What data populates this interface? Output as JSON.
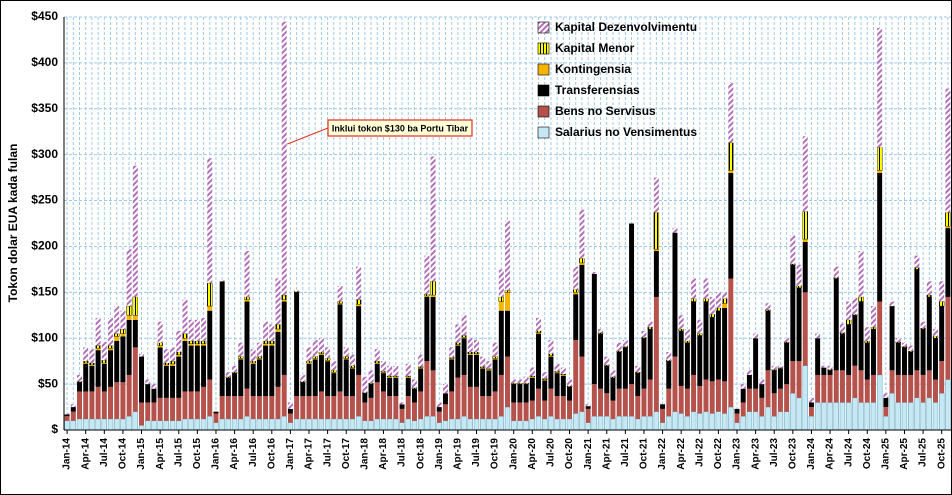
{
  "chart_data": {
    "type": "bar",
    "stacked": true,
    "ylabel": "Tokon dolar EUA kada fulan",
    "annotation": "Inklui tokon $130 ba Portu Tibar",
    "annotation_category": 35,
    "categories": [
      "Jan-14",
      null,
      null,
      "Apr-14",
      null,
      null,
      "Jul-14",
      null,
      null,
      "Oct-14",
      null,
      null,
      "Jan-15",
      null,
      null,
      "Apr-15",
      null,
      null,
      "Jul-15",
      null,
      null,
      "Oct-15",
      null,
      null,
      "Jan-16",
      null,
      null,
      "Apr-16",
      null,
      null,
      "Jul-16",
      null,
      null,
      "Oct-16",
      null,
      null,
      "Jan-17",
      null,
      null,
      "Apr-17",
      null,
      null,
      "Jul-17",
      null,
      null,
      "Oct-17",
      null,
      null,
      "Jan-18",
      null,
      null,
      "Apr-18",
      null,
      null,
      "Jul-18",
      null,
      null,
      "Oct-18",
      null,
      null,
      "Jan-19",
      null,
      null,
      "Apr-19",
      null,
      null,
      "Jul-19",
      null,
      null,
      "Oct-19",
      null,
      null,
      "Jan-20",
      null,
      null,
      "Apr-20",
      null,
      null,
      "Jul-20",
      null,
      null,
      "Oct-20",
      null,
      null,
      "Jan-21",
      null,
      null,
      "Apr-21",
      null,
      null,
      "Jul-21",
      null,
      null,
      "Oct-21",
      null,
      null,
      "Jan-22",
      null,
      null,
      "Apr-22",
      null,
      null,
      "Jul-22",
      null,
      null,
      "Oct-22",
      null,
      null,
      "Jan-23",
      null,
      null,
      "Apr-23",
      null,
      null,
      "Jul-23",
      null,
      null,
      "Oct-23",
      null,
      null,
      "Jan-24",
      null,
      null,
      "Apr-24",
      null,
      null,
      "Jul-24",
      null,
      null,
      "Oct-24",
      null,
      null,
      "Jan-25",
      null,
      null,
      "Apr-25",
      null,
      null,
      "Jul-25",
      null,
      null,
      "Oct-25",
      null
    ],
    "series": [
      {
        "name": "Salarius no Vensimentus",
        "color": "#c5e8f4",
        "stroke": "#4a90a8",
        "values": [
          10,
          10,
          12,
          12,
          12,
          12,
          12,
          12,
          12,
          12,
          15,
          20,
          5,
          10,
          10,
          10,
          10,
          10,
          10,
          12,
          12,
          12,
          12,
          15,
          8,
          12,
          12,
          12,
          12,
          15,
          12,
          12,
          12,
          12,
          12,
          15,
          8,
          12,
          12,
          12,
          12,
          12,
          12,
          12,
          12,
          12,
          12,
          15,
          10,
          10,
          12,
          12,
          12,
          12,
          8,
          12,
          10,
          12,
          15,
          15,
          8,
          10,
          12,
          12,
          15,
          12,
          12,
          12,
          12,
          12,
          15,
          25,
          10,
          10,
          10,
          12,
          15,
          12,
          15,
          12,
          12,
          12,
          18,
          20,
          8,
          15,
          15,
          15,
          12,
          15,
          15,
          15,
          12,
          15,
          15,
          20,
          8,
          15,
          20,
          18,
          15,
          20,
          18,
          20,
          18,
          20,
          18,
          25,
          8,
          15,
          20,
          20,
          15,
          25,
          15,
          20,
          20,
          40,
          35,
          70,
          15,
          30,
          30,
          30,
          30,
          30,
          30,
          35,
          30,
          30,
          30,
          60,
          15,
          40,
          30,
          30,
          30,
          35,
          30,
          35,
          30,
          40,
          55
        ]
      },
      {
        "name": "Bens no Servisus",
        "color": "#b5524c",
        "values": [
          5,
          10,
          30,
          30,
          30,
          35,
          30,
          35,
          40,
          40,
          45,
          70,
          25,
          20,
          20,
          25,
          25,
          25,
          25,
          30,
          30,
          30,
          35,
          40,
          10,
          25,
          25,
          25,
          25,
          30,
          25,
          25,
          25,
          25,
          35,
          45,
          10,
          25,
          25,
          25,
          25,
          30,
          25,
          25,
          30,
          25,
          25,
          45,
          20,
          25,
          40,
          30,
          25,
          25,
          15,
          25,
          20,
          30,
          60,
          50,
          12,
          18,
          30,
          45,
          45,
          35,
          35,
          25,
          25,
          30,
          45,
          55,
          20,
          20,
          20,
          20,
          30,
          20,
          30,
          25,
          25,
          20,
          80,
          60,
          15,
          35,
          30,
          25,
          20,
          30,
          30,
          35,
          25,
          30,
          40,
          125,
          15,
          30,
          60,
          30,
          30,
          40,
          30,
          35,
          35,
          35,
          35,
          140,
          10,
          15,
          25,
          25,
          20,
          40,
          25,
          25,
          30,
          35,
          40,
          80,
          10,
          30,
          30,
          30,
          35,
          35,
          30,
          35,
          35,
          25,
          30,
          80,
          10,
          25,
          30,
          30,
          30,
          30,
          30,
          30,
          25,
          35,
          90
        ]
      },
      {
        "name": "Transferensias",
        "color": "#000000",
        "values": [
          2,
          5,
          10,
          30,
          28,
          40,
          30,
          40,
          45,
          50,
          60,
          30,
          50,
          20,
          15,
          55,
          35,
          35,
          45,
          55,
          50,
          50,
          45,
          75,
          2,
          125,
          20,
          25,
          40,
          95,
          35,
          40,
          55,
          55,
          60,
          80,
          5,
          113,
          15,
          35,
          40,
          40,
          38,
          25,
          95,
          40,
          30,
          75,
          10,
          15,
          20,
          20,
          20,
          20,
          5,
          20,
          15,
          25,
          70,
          80,
          5,
          12,
          35,
          35,
          40,
          35,
          35,
          30,
          28,
          35,
          70,
          50,
          20,
          20,
          20,
          25,
          60,
          22,
          35,
          25,
          22,
          15,
          50,
          100,
          3,
          120,
          60,
          30,
          25,
          40,
          45,
          175,
          25,
          55,
          55,
          50,
          5,
          30,
          135,
          60,
          50,
          80,
          55,
          85,
          70,
          75,
          80,
          115,
          5,
          15,
          15,
          55,
          15,
          65,
          25,
          22,
          45,
          105,
          80,
          55,
          5,
          40,
          8,
          5,
          100,
          40,
          55,
          55,
          75,
          40,
          50,
          140,
          10,
          70,
          35,
          30,
          25,
          110,
          50,
          80,
          45,
          60,
          75
        ]
      },
      {
        "name": "Kontingensia",
        "color": "#f5b400",
        "values": [
          0,
          0,
          0,
          1,
          1,
          2,
          1,
          2,
          5,
          3,
          5,
          5,
          0,
          0,
          0,
          2,
          1,
          2,
          2,
          3,
          2,
          2,
          2,
          5,
          0,
          0,
          0,
          0,
          1,
          2,
          1,
          1,
          2,
          2,
          3,
          2,
          0,
          0,
          0,
          1,
          1,
          1,
          1,
          1,
          1,
          1,
          1,
          2,
          0,
          0,
          1,
          1,
          1,
          1,
          0,
          1,
          0,
          1,
          1,
          2,
          0,
          0,
          1,
          1,
          1,
          1,
          1,
          1,
          1,
          1,
          10,
          20,
          0,
          0,
          0,
          1,
          1,
          1,
          1,
          1,
          1,
          0,
          2,
          2,
          0,
          0,
          0,
          0,
          0,
          0,
          0,
          0,
          0,
          0,
          0,
          2,
          0,
          0,
          0,
          0,
          0,
          0,
          0,
          0,
          0,
          0,
          5,
          3,
          0,
          0,
          0,
          0,
          0,
          0,
          0,
          0,
          0,
          0,
          0,
          3,
          0,
          0,
          0,
          0,
          0,
          0,
          0,
          0,
          0,
          0,
          0,
          3,
          0,
          0,
          0,
          0,
          0,
          0,
          0,
          0,
          0,
          0,
          2
        ]
      },
      {
        "name": "Kapital Menor",
        "color": "#ffff00",
        "stroke": "#000000",
        "hatch": "vertical",
        "values": [
          0,
          0,
          1,
          2,
          2,
          3,
          3,
          3,
          3,
          5,
          10,
          20,
          0,
          0,
          0,
          3,
          2,
          3,
          3,
          5,
          3,
          3,
          3,
          25,
          0,
          0,
          1,
          1,
          2,
          3,
          2,
          2,
          3,
          3,
          5,
          5,
          0,
          1,
          1,
          2,
          2,
          2,
          2,
          2,
          2,
          2,
          2,
          5,
          1,
          1,
          2,
          1,
          1,
          1,
          0,
          1,
          1,
          1,
          2,
          15,
          0,
          0,
          1,
          2,
          2,
          2,
          2,
          1,
          1,
          2,
          5,
          2,
          1,
          1,
          1,
          1,
          2,
          1,
          2,
          1,
          1,
          1,
          3,
          5,
          0,
          0,
          1,
          1,
          1,
          1,
          1,
          0,
          1,
          1,
          2,
          40,
          0,
          1,
          0,
          2,
          2,
          3,
          2,
          3,
          3,
          3,
          5,
          30,
          0,
          0,
          0,
          0,
          0,
          1,
          1,
          1,
          1,
          1,
          2,
          30,
          0,
          0,
          0,
          1,
          1,
          1,
          5,
          1,
          5,
          2,
          2,
          25,
          0,
          0,
          1,
          1,
          1,
          2,
          1,
          2,
          2,
          5,
          15
        ]
      },
      {
        "name": "Kapital Dezenvolvimentu",
        "color": "#b070b8",
        "hatch": "diagonal",
        "values": [
          1,
          3,
          7,
          15,
          15,
          30,
          20,
          30,
          30,
          20,
          62,
          143,
          3,
          5,
          5,
          23,
          15,
          15,
          23,
          37,
          23,
          23,
          25,
          136,
          0,
          1,
          5,
          7,
          15,
          50,
          13,
          15,
          21,
          18,
          50,
          298,
          7,
          1,
          7,
          15,
          18,
          15,
          12,
          10,
          17,
          10,
          12,
          36,
          17,
          14,
          13,
          11,
          11,
          11,
          2,
          13,
          9,
          13,
          42,
          136,
          5,
          10,
          11,
          20,
          22,
          15,
          13,
          11,
          8,
          15,
          30,
          76,
          4,
          4,
          7,
          9,
          14,
          7,
          15,
          8,
          7,
          7,
          25,
          53,
          2,
          2,
          4,
          9,
          7,
          9,
          7,
          0,
          7,
          7,
          6,
          38,
          0,
          9,
          5,
          15,
          13,
          22,
          15,
          22,
          19,
          17,
          7,
          65,
          0,
          5,
          5,
          5,
          5,
          7,
          4,
          2,
          4,
          31,
          23,
          82,
          5,
          5,
          2,
          4,
          12,
          10,
          20,
          18,
          50,
          15,
          23,
          130,
          5,
          5,
          4,
          4,
          6,
          13,
          7,
          15,
          8,
          22,
          135
        ]
      }
    ],
    "legend": "top-right",
    "ylim": [
      0,
      450
    ],
    "yticks": [
      {
        "value": 0,
        "label": "$"
      },
      {
        "value": 50,
        "label": "$50"
      },
      {
        "value": 100,
        "label": "$100"
      },
      {
        "value": 150,
        "label": "$150"
      },
      {
        "value": 200,
        "label": "$200"
      },
      {
        "value": 250,
        "label": "$250"
      },
      {
        "value": 300,
        "label": "$300"
      },
      {
        "value": 350,
        "label": "$350"
      },
      {
        "value": 400,
        "label": "$400"
      },
      {
        "value": 450,
        "label": "$450"
      }
    ],
    "grid": true
  }
}
